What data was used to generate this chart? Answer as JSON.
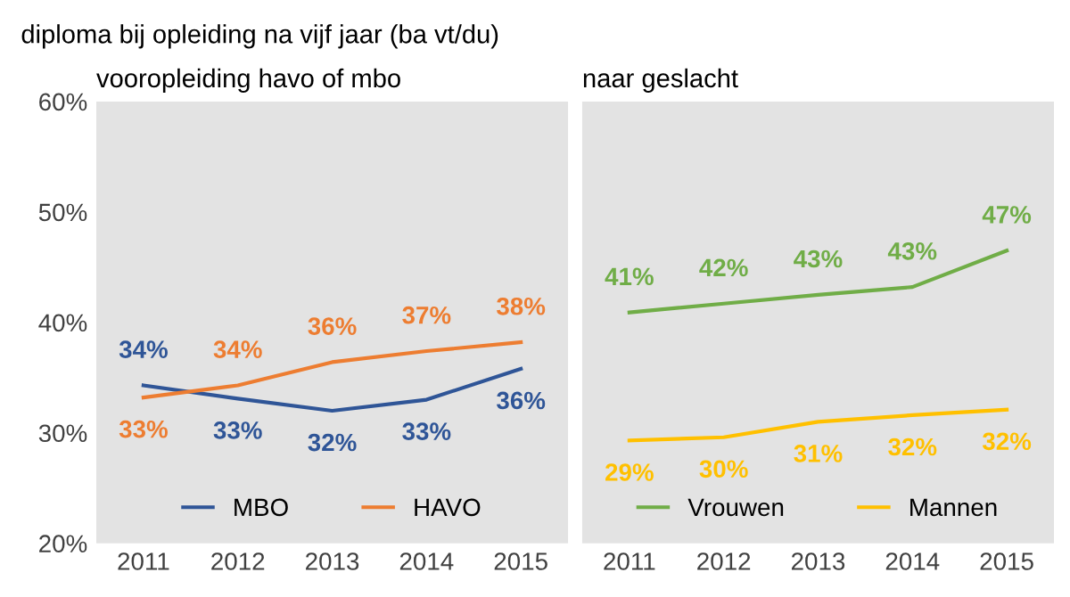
{
  "chart_data": [
    {
      "type": "line",
      "title": "diploma bij opleiding na vijf jaar (ba vt/du)",
      "subtitle": "vooropleiding havo of mbo",
      "categories": [
        "2011",
        "2012",
        "2013",
        "2014",
        "2015"
      ],
      "series": [
        {
          "name": "MBO",
          "color": "#2f5597",
          "values": [
            34.3,
            33.1,
            32.0,
            33.0,
            35.8
          ],
          "value_labels": [
            "34%",
            "33%",
            "32%",
            "33%",
            "36%"
          ]
        },
        {
          "name": "HAVO",
          "color": "#ed7d31",
          "values": [
            33.2,
            34.3,
            36.4,
            37.4,
            38.2
          ],
          "value_labels": [
            "33%",
            "34%",
            "36%",
            "37%",
            "38%"
          ]
        }
      ],
      "ylim": [
        20,
        60
      ],
      "yticks": [
        {
          "value": 20,
          "label": "20%"
        },
        {
          "value": 30,
          "label": "30%"
        },
        {
          "value": 40,
          "label": "40%"
        },
        {
          "value": 50,
          "label": "50%"
        },
        {
          "value": 60,
          "label": "60%"
        }
      ],
      "legend": "bottom",
      "grid": false
    },
    {
      "type": "line",
      "title": "naar geslacht",
      "categories": [
        "2011",
        "2012",
        "2013",
        "2014",
        "2015"
      ],
      "series": [
        {
          "name": "Vrouwen",
          "color": "#70ad47",
          "values": [
            40.9,
            41.7,
            42.5,
            43.2,
            46.5
          ],
          "value_labels": [
            "41%",
            "42%",
            "43%",
            "43%",
            "47%"
          ]
        },
        {
          "name": "Mannen",
          "color": "#ffc000",
          "values": [
            29.3,
            29.6,
            31.0,
            31.6,
            32.1
          ],
          "value_labels": [
            "29%",
            "30%",
            "31%",
            "32%",
            "32%"
          ]
        }
      ],
      "ylim": [
        20,
        60
      ],
      "tick_labels": "x",
      "legend": "bottom",
      "grid": false
    }
  ]
}
